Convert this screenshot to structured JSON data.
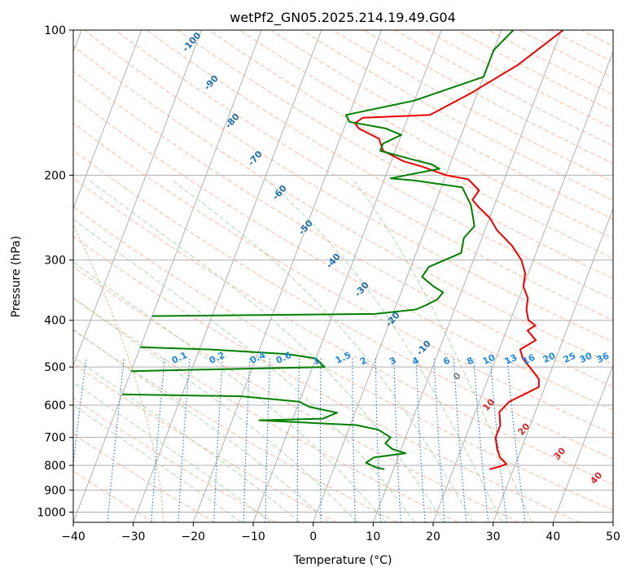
{
  "chart_data": {
    "type": "line",
    "title": "wetPf2_GN05.2025.214.19.49.G04",
    "xlabel": "Temperature (°C)",
    "ylabel": "Pressure (hPa)",
    "xlim": [
      -40,
      50
    ],
    "ylim": [
      1050,
      100
    ],
    "yscale": "log",
    "x_ticks": [
      -40,
      -30,
      -20,
      -10,
      0,
      10,
      20,
      30,
      40,
      50
    ],
    "y_ticks": [
      100,
      200,
      300,
      400,
      500,
      600,
      700,
      800,
      900,
      1000
    ],
    "grid": true,
    "colors": {
      "temperature": "#ee0000",
      "dewpoint": "#008000",
      "isotherm": "#aaaaaa",
      "dry_adiabat": "#f4a582",
      "moist_adiabat": "#a6d4a6",
      "mixing_ratio": "#1f77d4",
      "mixing_label": "#1e88e5",
      "theta_label": "#1f6fae",
      "moist_label": "#d62728",
      "zero_label": "#808080",
      "tan_curve": "#d2b48c"
    },
    "series": [
      {
        "points": [
          [
            10.3,
            100
          ],
          [
            5.0,
            118
          ],
          [
            -1.0,
            135
          ],
          [
            -6.5,
            150
          ],
          [
            -17.5,
            152
          ],
          [
            -18.5,
            156
          ],
          [
            -17.5,
            160
          ],
          [
            -13.5,
            168
          ],
          [
            -12.0,
            178
          ],
          [
            -8.0,
            187
          ],
          [
            -4.5,
            192
          ],
          [
            0.0,
            200
          ],
          [
            4.0,
            204
          ],
          [
            6.5,
            215
          ],
          [
            6.0,
            225
          ],
          [
            7.5,
            233
          ],
          [
            10.0,
            245
          ],
          [
            12.0,
            260
          ],
          [
            15.5,
            280
          ],
          [
            18.0,
            300
          ],
          [
            19.5,
            320
          ],
          [
            20.0,
            340
          ],
          [
            21.5,
            360
          ],
          [
            22.0,
            380
          ],
          [
            23.0,
            400
          ],
          [
            24.5,
            410
          ],
          [
            23.5,
            420
          ],
          [
            25.5,
            440
          ],
          [
            23.5,
            460
          ],
          [
            24.5,
            480
          ],
          [
            27.0,
            510
          ],
          [
            28.5,
            530
          ],
          [
            29.0,
            550
          ],
          [
            27.0,
            570
          ],
          [
            25.0,
            590
          ],
          [
            24.0,
            620
          ],
          [
            25.0,
            660
          ],
          [
            25.0,
            700
          ],
          [
            26.0,
            740
          ],
          [
            27.0,
            770
          ],
          [
            28.5,
            795
          ],
          [
            27.5,
            805
          ],
          [
            26.0,
            815
          ]
        ]
      },
      {
        "points": [
          [
            2.0,
            100
          ],
          [
            0.0,
            110
          ],
          [
            0.0,
            125
          ],
          [
            -10.0,
            140
          ],
          [
            -20.5,
            150
          ],
          [
            -19.5,
            155
          ],
          [
            -13.0,
            160
          ],
          [
            -10.0,
            165
          ],
          [
            -12.5,
            172
          ],
          [
            -12.5,
            178
          ],
          [
            -7.0,
            185
          ],
          [
            -3.0,
            190
          ],
          [
            -1.5,
            194
          ],
          [
            -5.0,
            198
          ],
          [
            -9.0,
            203
          ],
          [
            -5.0,
            205
          ],
          [
            3.5,
            212
          ],
          [
            6.0,
            230
          ],
          [
            7.0,
            242
          ],
          [
            8.0,
            255
          ],
          [
            7.0,
            270
          ],
          [
            7.5,
            290
          ],
          [
            3.0,
            310
          ],
          [
            2.5,
            325
          ],
          [
            5.0,
            340
          ],
          [
            7.0,
            350
          ],
          [
            6.5,
            362
          ],
          [
            5.0,
            372
          ],
          [
            3.5,
            380
          ],
          [
            -3.0,
            388
          ],
          [
            -40.0,
            392
          ]
        ]
      },
      {
        "points": [
          [
            -40.0,
            455
          ],
          [
            -28.0,
            460
          ],
          [
            -15.0,
            470
          ],
          [
            -10.0,
            480
          ],
          [
            -9.0,
            490
          ],
          [
            -8.0,
            500
          ],
          [
            -40.0,
            510
          ]
        ]
      },
      {
        "points": [
          [
            -40.0,
            570
          ],
          [
            -20.0,
            575
          ],
          [
            -10.0,
            590
          ],
          [
            -8.0,
            605
          ],
          [
            -3.0,
            622
          ],
          [
            -5.0,
            640
          ],
          [
            -15.5,
            645
          ],
          [
            1.0,
            660
          ],
          [
            5.0,
            675
          ],
          [
            7.5,
            700
          ],
          [
            7.0,
            720
          ],
          [
            8.5,
            740
          ],
          [
            11.0,
            755
          ],
          [
            6.0,
            770
          ],
          [
            5.0,
            790
          ],
          [
            7.0,
            808
          ],
          [
            8.5,
            815
          ]
        ]
      }
    ],
    "annotations": {
      "dry_adiabat_labels": [
        "-100",
        "-90",
        "-80",
        "-70",
        "-60",
        "-50",
        "-40",
        "-30",
        "-20",
        "-10",
        "0"
      ],
      "mixing_ratio_labels": [
        "0.1",
        "0.2",
        "0.4",
        "0.6",
        "1",
        "1.5",
        "2",
        "3",
        "4",
        "6",
        "8",
        "10",
        "13",
        "16",
        "20",
        "25",
        "30",
        "36"
      ],
      "moist_adiabat_labels": [
        "10",
        "20",
        "30",
        "40"
      ]
    }
  }
}
